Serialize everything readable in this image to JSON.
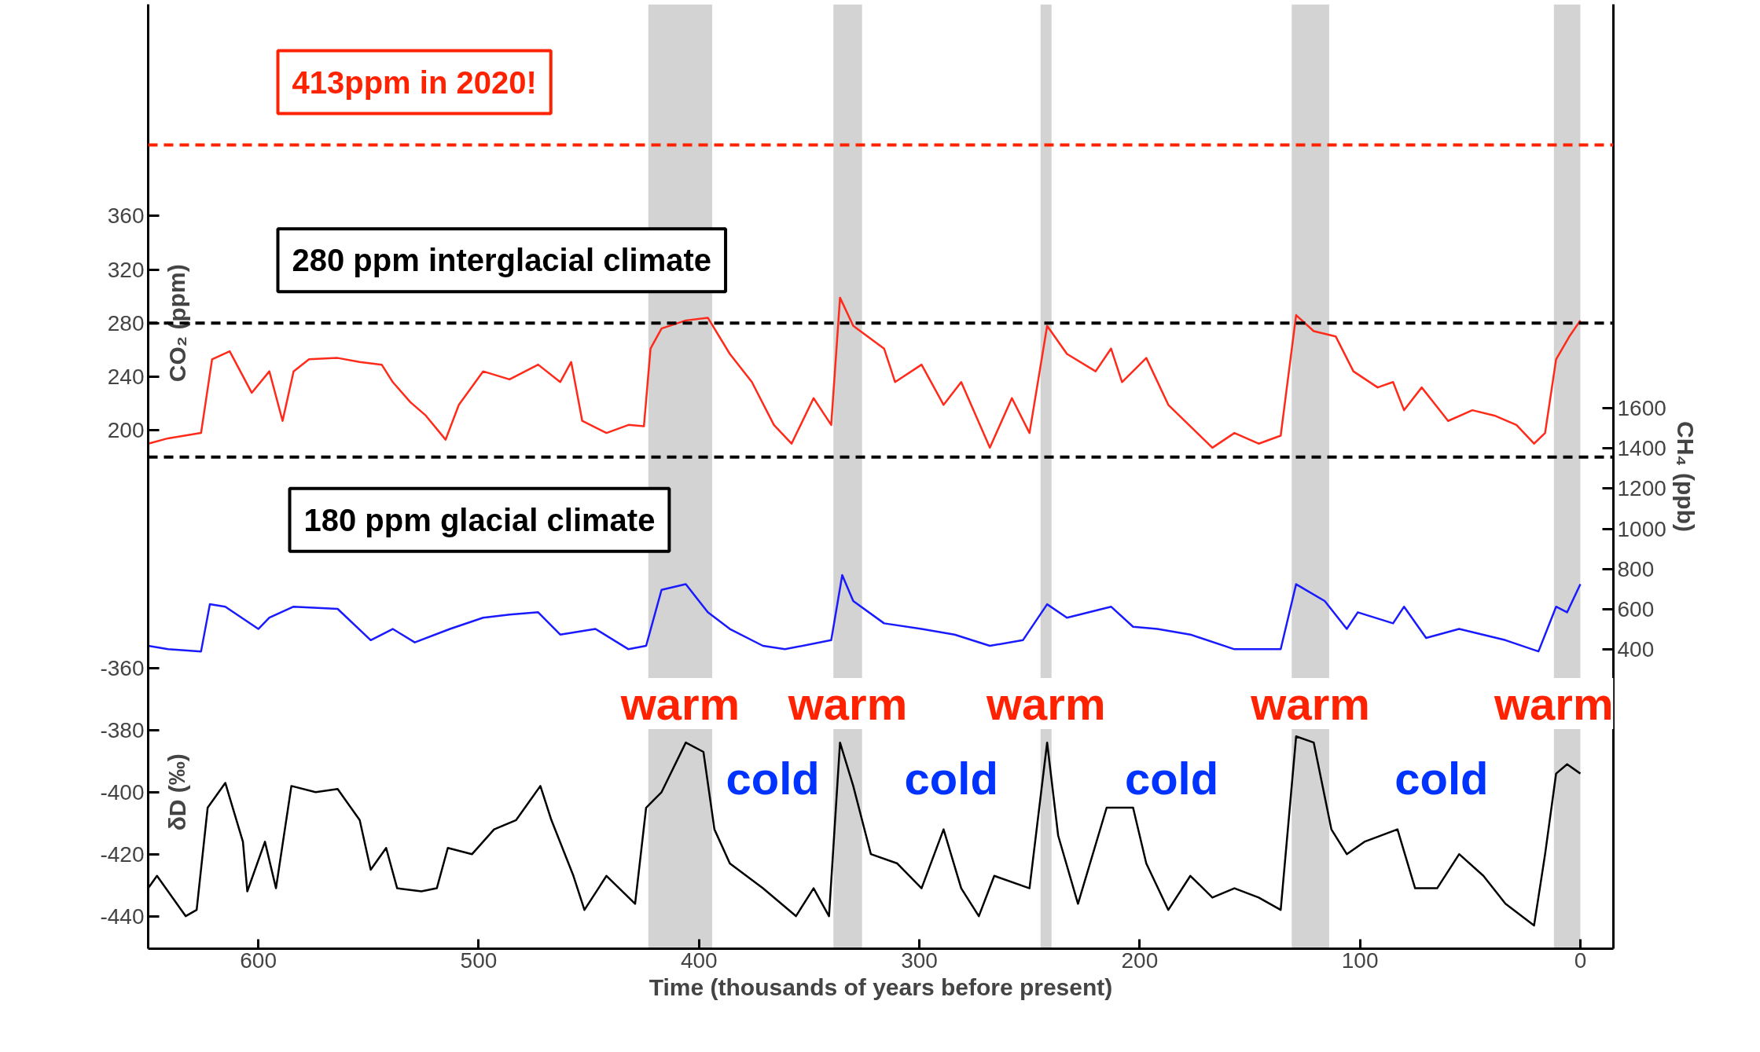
{
  "chart_data": {
    "type": "line",
    "xlabel": "Time (thousands of years before present)",
    "ylabel": "CO₂ (ppm)",
    "y2label": "CH₄ (ppb)",
    "y3label": "δD (‰)",
    "xlim": [
      650,
      -15
    ],
    "xticks": [
      600,
      500,
      400,
      300,
      200,
      100,
      0
    ],
    "ylim": [
      -187,
      518
    ],
    "yticks": [
      200,
      240,
      280,
      320,
      360
    ],
    "y2lim": [
      -1092,
      3613
    ],
    "y2ticks": [
      400,
      600,
      800,
      1000,
      1200,
      1400,
      1600
    ],
    "y3lim": [
      -450.5,
      -145.8
    ],
    "y3ticks": [
      -440,
      -420,
      -400,
      -380,
      -360
    ],
    "grid": false,
    "series": [
      {
        "color": "#ff2a1a",
        "axis": "y",
        "x": [
          650,
          641,
          626,
          621,
          613,
          603,
          595,
          589,
          584,
          577,
          564,
          554,
          544,
          539,
          531,
          524,
          515,
          509,
          498,
          486,
          473,
          463,
          458,
          453,
          442,
          432,
          425,
          422,
          417,
          406,
          396,
          386,
          376,
          366,
          358,
          348,
          340,
          336,
          330,
          316,
          311,
          299,
          289,
          281,
          268,
          258,
          250,
          242,
          233,
          220,
          213,
          208,
          197,
          187,
          177,
          167,
          157,
          146,
          136,
          129,
          121,
          111,
          103,
          92,
          85,
          80,
          72,
          60,
          49,
          39,
          29,
          21,
          16,
          11,
          5,
          0
        ],
        "values": [
          190,
          194,
          198,
          253,
          259,
          228,
          244,
          207,
          244,
          253,
          254,
          251,
          249,
          236,
          221,
          211,
          193,
          219,
          244,
          238,
          249,
          236,
          251,
          207,
          198,
          204,
          203,
          261,
          276,
          282,
          284,
          257,
          236,
          204,
          190,
          224,
          204,
          299,
          278,
          261,
          236,
          249,
          219,
          236,
          187,
          224,
          198,
          278,
          257,
          244,
          261,
          236,
          254,
          219,
          203,
          187,
          198,
          190,
          196,
          286,
          274,
          270,
          244,
          232,
          236,
          215,
          232,
          207,
          215,
          211,
          204,
          190,
          198,
          253,
          270,
          282
        ]
      },
      {
        "color": "#1a1aff",
        "axis": "y2",
        "x": [
          650,
          641,
          626,
          622,
          615,
          600,
          595,
          584,
          564,
          549,
          539,
          529,
          513,
          498,
          486,
          473,
          463,
          447,
          432,
          424,
          417,
          406,
          396,
          386,
          371,
          361,
          340,
          335,
          330,
          316,
          299,
          284,
          268,
          253,
          242,
          233,
          213,
          203,
          192,
          177,
          157,
          136,
          129,
          116,
          106,
          101,
          85,
          80,
          70,
          55,
          34,
          19,
          11,
          6,
          0
        ],
        "values": [
          417,
          400,
          389,
          624,
          612,
          501,
          557,
          612,
          601,
          445,
          501,
          434,
          501,
          557,
          573,
          584,
          473,
          501,
          400,
          417,
          696,
          724,
          584,
          501,
          417,
          400,
          445,
          769,
          640,
          529,
          501,
          473,
          417,
          445,
          624,
          557,
          612,
          512,
          501,
          473,
          400,
          400,
          724,
          640,
          501,
          584,
          529,
          612,
          456,
          501,
          445,
          389,
          612,
          584,
          724
        ]
      },
      {
        "color": "#000000",
        "axis": "y3",
        "x": [
          650,
          646,
          633,
          628,
          623,
          615,
          607,
          605,
          597,
          592,
          585,
          574,
          564,
          554,
          549,
          542,
          537,
          526,
          519,
          514,
          503,
          493,
          483,
          472,
          467,
          457,
          452,
          442,
          429,
          424,
          417,
          406,
          398,
          393,
          386,
          371,
          356,
          348,
          341,
          336,
          330,
          322,
          310,
          299,
          289,
          281,
          273,
          266,
          250,
          242,
          237,
          228,
          215,
          203,
          197,
          187,
          177,
          167,
          157,
          146,
          136,
          129,
          121,
          113,
          106,
          98,
          83,
          75,
          65,
          55,
          44,
          34,
          21,
          16,
          11,
          6,
          0
        ],
        "values": [
          -431,
          -427,
          -440,
          -438,
          -405,
          -397,
          -416,
          -432,
          -416,
          -431,
          -398,
          -400,
          -399,
          -409,
          -425,
          -418,
          -431,
          -432,
          -431,
          -418,
          -420,
          -412,
          -409,
          -398,
          -409,
          -427,
          -438,
          -427,
          -436,
          -405,
          -400,
          -384,
          -387,
          -412,
          -423,
          -431,
          -440,
          -431,
          -440,
          -384,
          -398,
          -420,
          -423,
          -431,
          -412,
          -431,
          -440,
          -427,
          -431,
          -384,
          -414,
          -436,
          -405,
          -405,
          -423,
          -438,
          -427,
          -434,
          -431,
          -434,
          -438,
          -382,
          -384,
          -412,
          -420,
          -416,
          -412,
          -431,
          -431,
          -420,
          -427,
          -436,
          -443,
          -420,
          -394,
          -391,
          -394
        ]
      }
    ],
    "ref_lines": [
      {
        "axis": "y",
        "value": 413,
        "label": "413ppm in 2020!",
        "color": "#ff2200",
        "line_style": "dashed"
      },
      {
        "axis": "y",
        "value": 280,
        "label": "280 ppm interglacial climate",
        "color": "#000000",
        "line_style": "dashed"
      },
      {
        "axis": "y",
        "value": 180,
        "label": "180 ppm glacial climate",
        "color": "#000000",
        "line_style": "dashed"
      }
    ],
    "bands": [
      {
        "axis": "x",
        "from": 423,
        "to": 394,
        "label": "warm",
        "color": "#d3d3d3"
      },
      {
        "axis": "x",
        "from": 339,
        "to": 326,
        "label": "warm",
        "color": "#d3d3d3"
      },
      {
        "axis": "x",
        "from": 245,
        "to": 240,
        "label": "warm",
        "color": "#d3d3d3"
      },
      {
        "axis": "x",
        "from": 131,
        "to": 114,
        "label": "warm",
        "color": "#d3d3d3"
      },
      {
        "axis": "x",
        "from": 12,
        "to": 0,
        "label": "warm",
        "color": "#d3d3d3"
      }
    ],
    "annotations": [
      "cold",
      "cold",
      "cold",
      "cold"
    ]
  }
}
